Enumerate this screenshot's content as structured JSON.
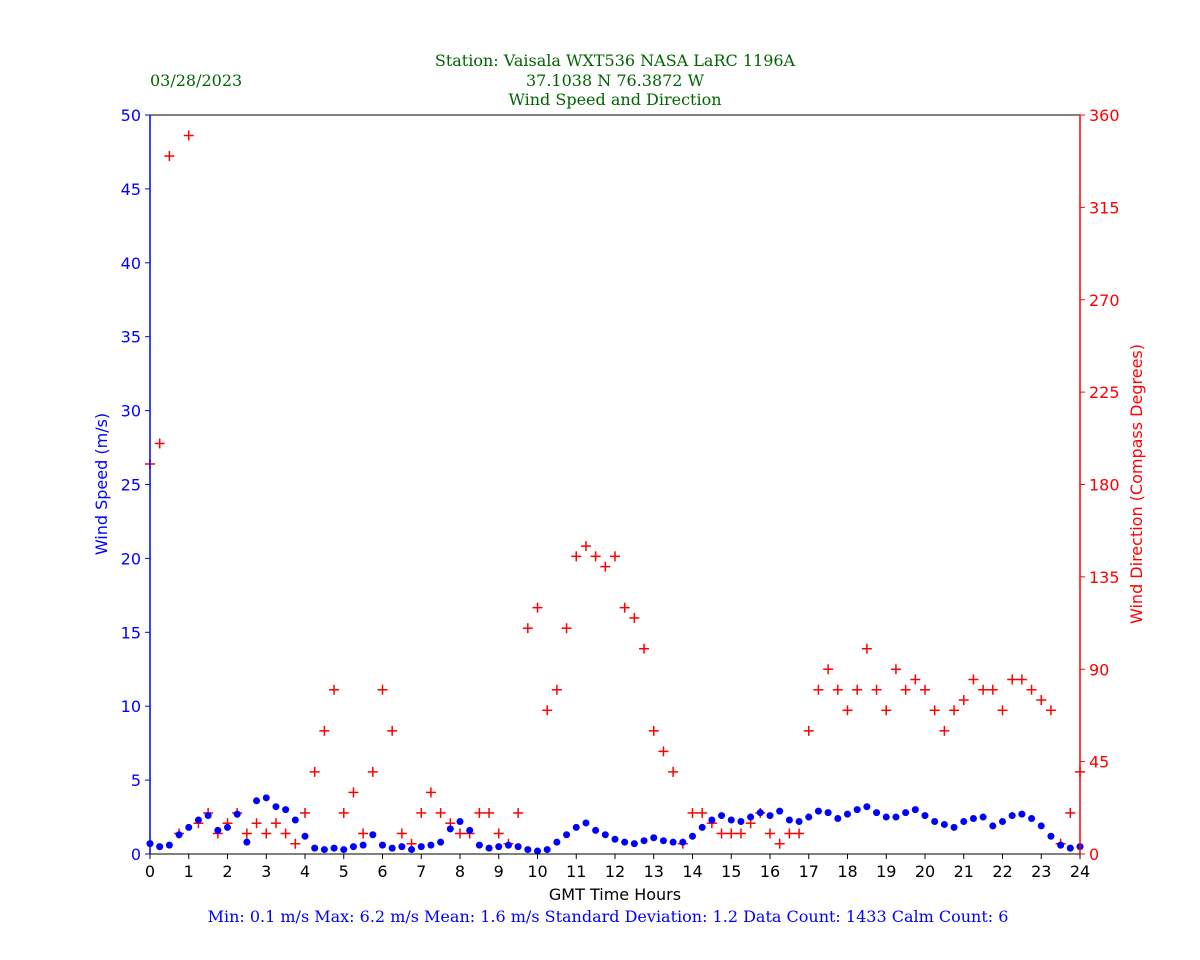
{
  "header": {
    "date": "03/28/2023",
    "station_line": "Station:  Vaisala WXT536  NASA LaRC 1196A",
    "coords_line": "37.1038 N 76.3872 W",
    "title_line": "Wind Speed and Direction"
  },
  "footer": {
    "stats_line": "Min: 0.1 m/s   Max: 6.2 m/s   Mean: 1.6 m/s  Standard Deviation: 1.2  Data Count: 1433  Calm Count:  6"
  },
  "colors": {
    "header_text": "#006400",
    "speed": "#0000ff",
    "direction": "#ff0000",
    "stats_text": "#0000ff"
  },
  "chart_data": {
    "type": "scatter",
    "xlabel": "GMT Time Hours",
    "ylabel": "Wind Speed (m/s)",
    "y2label": "Wind Direction (Compass Degrees)",
    "xlim": [
      0,
      24
    ],
    "ylim": [
      0,
      50
    ],
    "y2lim": [
      0,
      360
    ],
    "xticks": [
      0,
      1,
      2,
      3,
      4,
      5,
      6,
      7,
      8,
      9,
      10,
      11,
      12,
      13,
      14,
      15,
      16,
      17,
      18,
      19,
      20,
      21,
      22,
      23,
      24
    ],
    "yticks": [
      0,
      5,
      10,
      15,
      20,
      25,
      30,
      35,
      40,
      45,
      50
    ],
    "y2ticks": [
      0,
      45,
      90,
      135,
      180,
      225,
      270,
      315,
      360
    ],
    "grid": false,
    "series": [
      {
        "axis": "left",
        "marker": "circle",
        "x": [
          0.0,
          0.25,
          0.5,
          0.75,
          1.0,
          1.25,
          1.5,
          1.75,
          2.0,
          2.25,
          2.5,
          2.75,
          3.0,
          3.25,
          3.5,
          3.75,
          4.0,
          4.25,
          4.5,
          4.75,
          5.0,
          5.25,
          5.5,
          5.75,
          6.0,
          6.25,
          6.5,
          6.75,
          7.0,
          7.25,
          7.5,
          7.75,
          8.0,
          8.25,
          8.5,
          8.75,
          9.0,
          9.25,
          9.5,
          9.75,
          10.0,
          10.25,
          10.5,
          10.75,
          11.0,
          11.25,
          11.5,
          11.75,
          12.0,
          12.25,
          12.5,
          12.75,
          13.0,
          13.25,
          13.5,
          13.75,
          14.0,
          14.25,
          14.5,
          14.75,
          15.0,
          15.25,
          15.5,
          15.75,
          16.0,
          16.25,
          16.5,
          16.75,
          17.0,
          17.25,
          17.5,
          17.75,
          18.0,
          18.25,
          18.5,
          18.75,
          19.0,
          19.25,
          19.5,
          19.75,
          20.0,
          20.25,
          20.5,
          20.75,
          21.0,
          21.25,
          21.5,
          21.75,
          22.0,
          22.25,
          22.5,
          22.75,
          23.0,
          23.25,
          23.5,
          23.75,
          24.0
        ],
        "values": [
          0.7,
          0.5,
          0.6,
          1.3,
          1.8,
          2.3,
          2.6,
          1.6,
          1.8,
          2.7,
          0.8,
          3.6,
          3.8,
          3.2,
          3.0,
          2.3,
          1.2,
          0.4,
          0.3,
          0.4,
          0.3,
          0.5,
          0.6,
          1.3,
          0.6,
          0.4,
          0.5,
          0.3,
          0.5,
          0.6,
          0.8,
          1.7,
          2.2,
          1.6,
          0.6,
          0.4,
          0.5,
          0.6,
          0.5,
          0.3,
          0.2,
          0.3,
          0.8,
          1.3,
          1.8,
          2.1,
          1.6,
          1.3,
          1.0,
          0.8,
          0.7,
          0.9,
          1.1,
          0.9,
          0.8,
          0.8,
          1.2,
          1.8,
          2.3,
          2.6,
          2.3,
          2.2,
          2.5,
          2.8,
          2.6,
          2.9,
          2.3,
          2.2,
          2.5,
          2.9,
          2.8,
          2.4,
          2.7,
          3.0,
          3.2,
          2.8,
          2.5,
          2.5,
          2.8,
          3.0,
          2.6,
          2.2,
          2.0,
          1.8,
          2.2,
          2.4,
          2.5,
          1.9,
          2.2,
          2.6,
          2.7,
          2.4,
          1.9,
          1.2,
          0.6,
          0.4,
          0.5
        ]
      },
      {
        "axis": "right",
        "marker": "plus",
        "x": [
          0.0,
          0.25,
          0.5,
          0.75,
          1.0,
          1.25,
          1.5,
          1.75,
          2.0,
          2.25,
          2.5,
          2.75,
          3.0,
          3.25,
          3.5,
          3.75,
          4.0,
          4.25,
          4.5,
          4.75,
          5.0,
          5.25,
          5.5,
          5.75,
          6.0,
          6.25,
          6.5,
          6.75,
          7.0,
          7.25,
          7.5,
          7.75,
          8.0,
          8.25,
          8.5,
          8.75,
          9.0,
          9.25,
          9.5,
          9.75,
          10.0,
          10.25,
          10.5,
          10.75,
          11.0,
          11.25,
          11.5,
          11.75,
          12.0,
          12.25,
          12.5,
          12.75,
          13.0,
          13.25,
          13.5,
          13.75,
          14.0,
          14.25,
          14.5,
          14.75,
          15.0,
          15.25,
          15.5,
          15.75,
          16.0,
          16.25,
          16.5,
          16.75,
          17.0,
          17.25,
          17.5,
          17.75,
          18.0,
          18.25,
          18.5,
          18.75,
          19.0,
          19.25,
          19.5,
          19.75,
          20.0,
          20.25,
          20.5,
          20.75,
          21.0,
          21.25,
          21.5,
          21.75,
          22.0,
          22.25,
          22.5,
          22.75,
          23.0,
          23.25,
          23.5,
          23.75,
          24.0
        ],
        "values": [
          190,
          200,
          340,
          10,
          350,
          15,
          20,
          10,
          15,
          20,
          10,
          15,
          10,
          15,
          10,
          5,
          20,
          40,
          60,
          80,
          20,
          30,
          10,
          40,
          80,
          60,
          10,
          5,
          20,
          30,
          20,
          15,
          10,
          10,
          20,
          20,
          10,
          5,
          20,
          110,
          120,
          70,
          80,
          110,
          145,
          150,
          145,
          140,
          145,
          120,
          115,
          100,
          60,
          50,
          40,
          5,
          20,
          20,
          15,
          10,
          10,
          10,
          15,
          20,
          10,
          5,
          10,
          10,
          60,
          80,
          90,
          80,
          70,
          80,
          100,
          80,
          70,
          90,
          80,
          85,
          80,
          70,
          60,
          70,
          75,
          85,
          80,
          80,
          70,
          85,
          85,
          80,
          75,
          70,
          5,
          20,
          40
        ]
      }
    ]
  }
}
